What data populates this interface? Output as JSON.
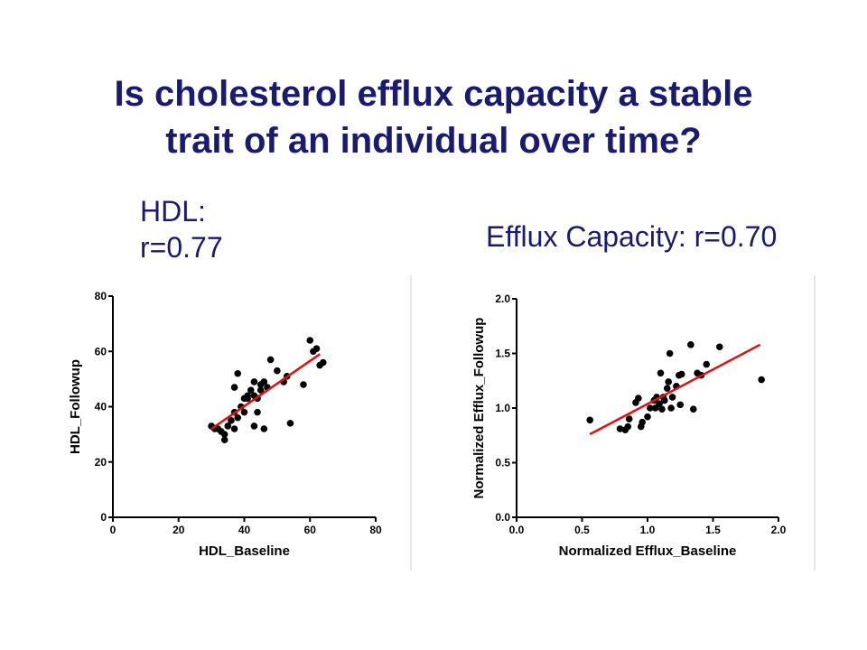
{
  "slide": {
    "title_line1": "Is cholesterol efflux capacity a stable",
    "title_line2": "trait of an individual over time?",
    "hdl_label_line1": "HDL:",
    "hdl_label_line2": "r=0.77",
    "efflux_label": "Efflux Capacity: r=0.70"
  },
  "colors": {
    "title": "#1a1a6e",
    "points": "#000000",
    "fit_line": "#e01010"
  },
  "chart_data": [
    {
      "type": "scatter",
      "xlabel": "HDL_Baseline",
      "ylabel": "HDL_Followup",
      "xlim": [
        0,
        80
      ],
      "ylim": [
        0,
        80
      ],
      "xticks": [
        "0",
        "20",
        "40",
        "60",
        "80"
      ],
      "yticks": [
        "0",
        "20",
        "40",
        "60",
        "80"
      ],
      "grid": false,
      "points": [
        [
          30,
          33
        ],
        [
          31,
          32
        ],
        [
          32,
          32
        ],
        [
          33,
          31
        ],
        [
          34,
          30
        ],
        [
          34,
          28
        ],
        [
          35,
          33
        ],
        [
          36,
          35
        ],
        [
          37,
          32
        ],
        [
          37,
          38
        ],
        [
          37,
          47
        ],
        [
          38,
          52
        ],
        [
          38,
          36
        ],
        [
          39,
          40
        ],
        [
          40,
          43
        ],
        [
          40,
          38
        ],
        [
          41,
          44
        ],
        [
          41,
          43
        ],
        [
          42,
          46
        ],
        [
          43,
          33
        ],
        [
          43,
          44
        ],
        [
          43,
          49
        ],
        [
          44,
          38
        ],
        [
          44,
          43
        ],
        [
          45,
          48
        ],
        [
          45,
          46
        ],
        [
          46,
          32
        ],
        [
          46,
          49
        ],
        [
          47,
          47
        ],
        [
          48,
          57
        ],
        [
          50,
          53
        ],
        [
          52,
          49
        ],
        [
          53,
          51
        ],
        [
          54,
          34
        ],
        [
          58,
          48
        ],
        [
          60,
          64
        ],
        [
          61,
          60
        ],
        [
          62,
          61
        ],
        [
          63,
          55
        ],
        [
          64,
          56
        ]
      ],
      "fit_line": [
        [
          30,
          32
        ],
        [
          63,
          59
        ]
      ]
    },
    {
      "type": "scatter",
      "xlabel": "Normalized  Efflux_Baseline",
      "ylabel": "Normalized  Efflux_Followup",
      "xlim": [
        0,
        2.0
      ],
      "ylim": [
        0,
        2.0
      ],
      "xticks": [
        "0.0",
        "0.5",
        "1.0",
        "1.5",
        "2.0"
      ],
      "yticks": [
        "0.0",
        "0.5",
        "1.0",
        "1.5",
        "2.0"
      ],
      "grid": false,
      "points": [
        [
          0.56,
          0.89
        ],
        [
          0.79,
          0.81
        ],
        [
          0.83,
          0.8
        ],
        [
          0.85,
          0.83
        ],
        [
          0.86,
          0.9
        ],
        [
          0.91,
          1.05
        ],
        [
          0.93,
          1.09
        ],
        [
          0.95,
          0.83
        ],
        [
          0.96,
          0.87
        ],
        [
          1.0,
          0.92
        ],
        [
          1.02,
          1.0
        ],
        [
          1.05,
          1.07
        ],
        [
          1.06,
          1.0
        ],
        [
          1.07,
          1.1
        ],
        [
          1.09,
          1.04
        ],
        [
          1.1,
          1.32
        ],
        [
          1.11,
          0.99
        ],
        [
          1.12,
          1.1
        ],
        [
          1.13,
          1.07
        ],
        [
          1.15,
          1.18
        ],
        [
          1.16,
          1.24
        ],
        [
          1.17,
          1.5
        ],
        [
          1.18,
          1.0
        ],
        [
          1.19,
          1.1
        ],
        [
          1.22,
          1.2
        ],
        [
          1.24,
          1.3
        ],
        [
          1.25,
          1.03
        ],
        [
          1.26,
          1.31
        ],
        [
          1.33,
          1.58
        ],
        [
          1.35,
          0.99
        ],
        [
          1.38,
          1.32
        ],
        [
          1.41,
          1.3
        ],
        [
          1.45,
          1.4
        ],
        [
          1.55,
          1.56
        ],
        [
          1.87,
          1.26
        ]
      ],
      "fit_line": [
        [
          0.56,
          0.76
        ],
        [
          1.86,
          1.58
        ]
      ]
    }
  ]
}
